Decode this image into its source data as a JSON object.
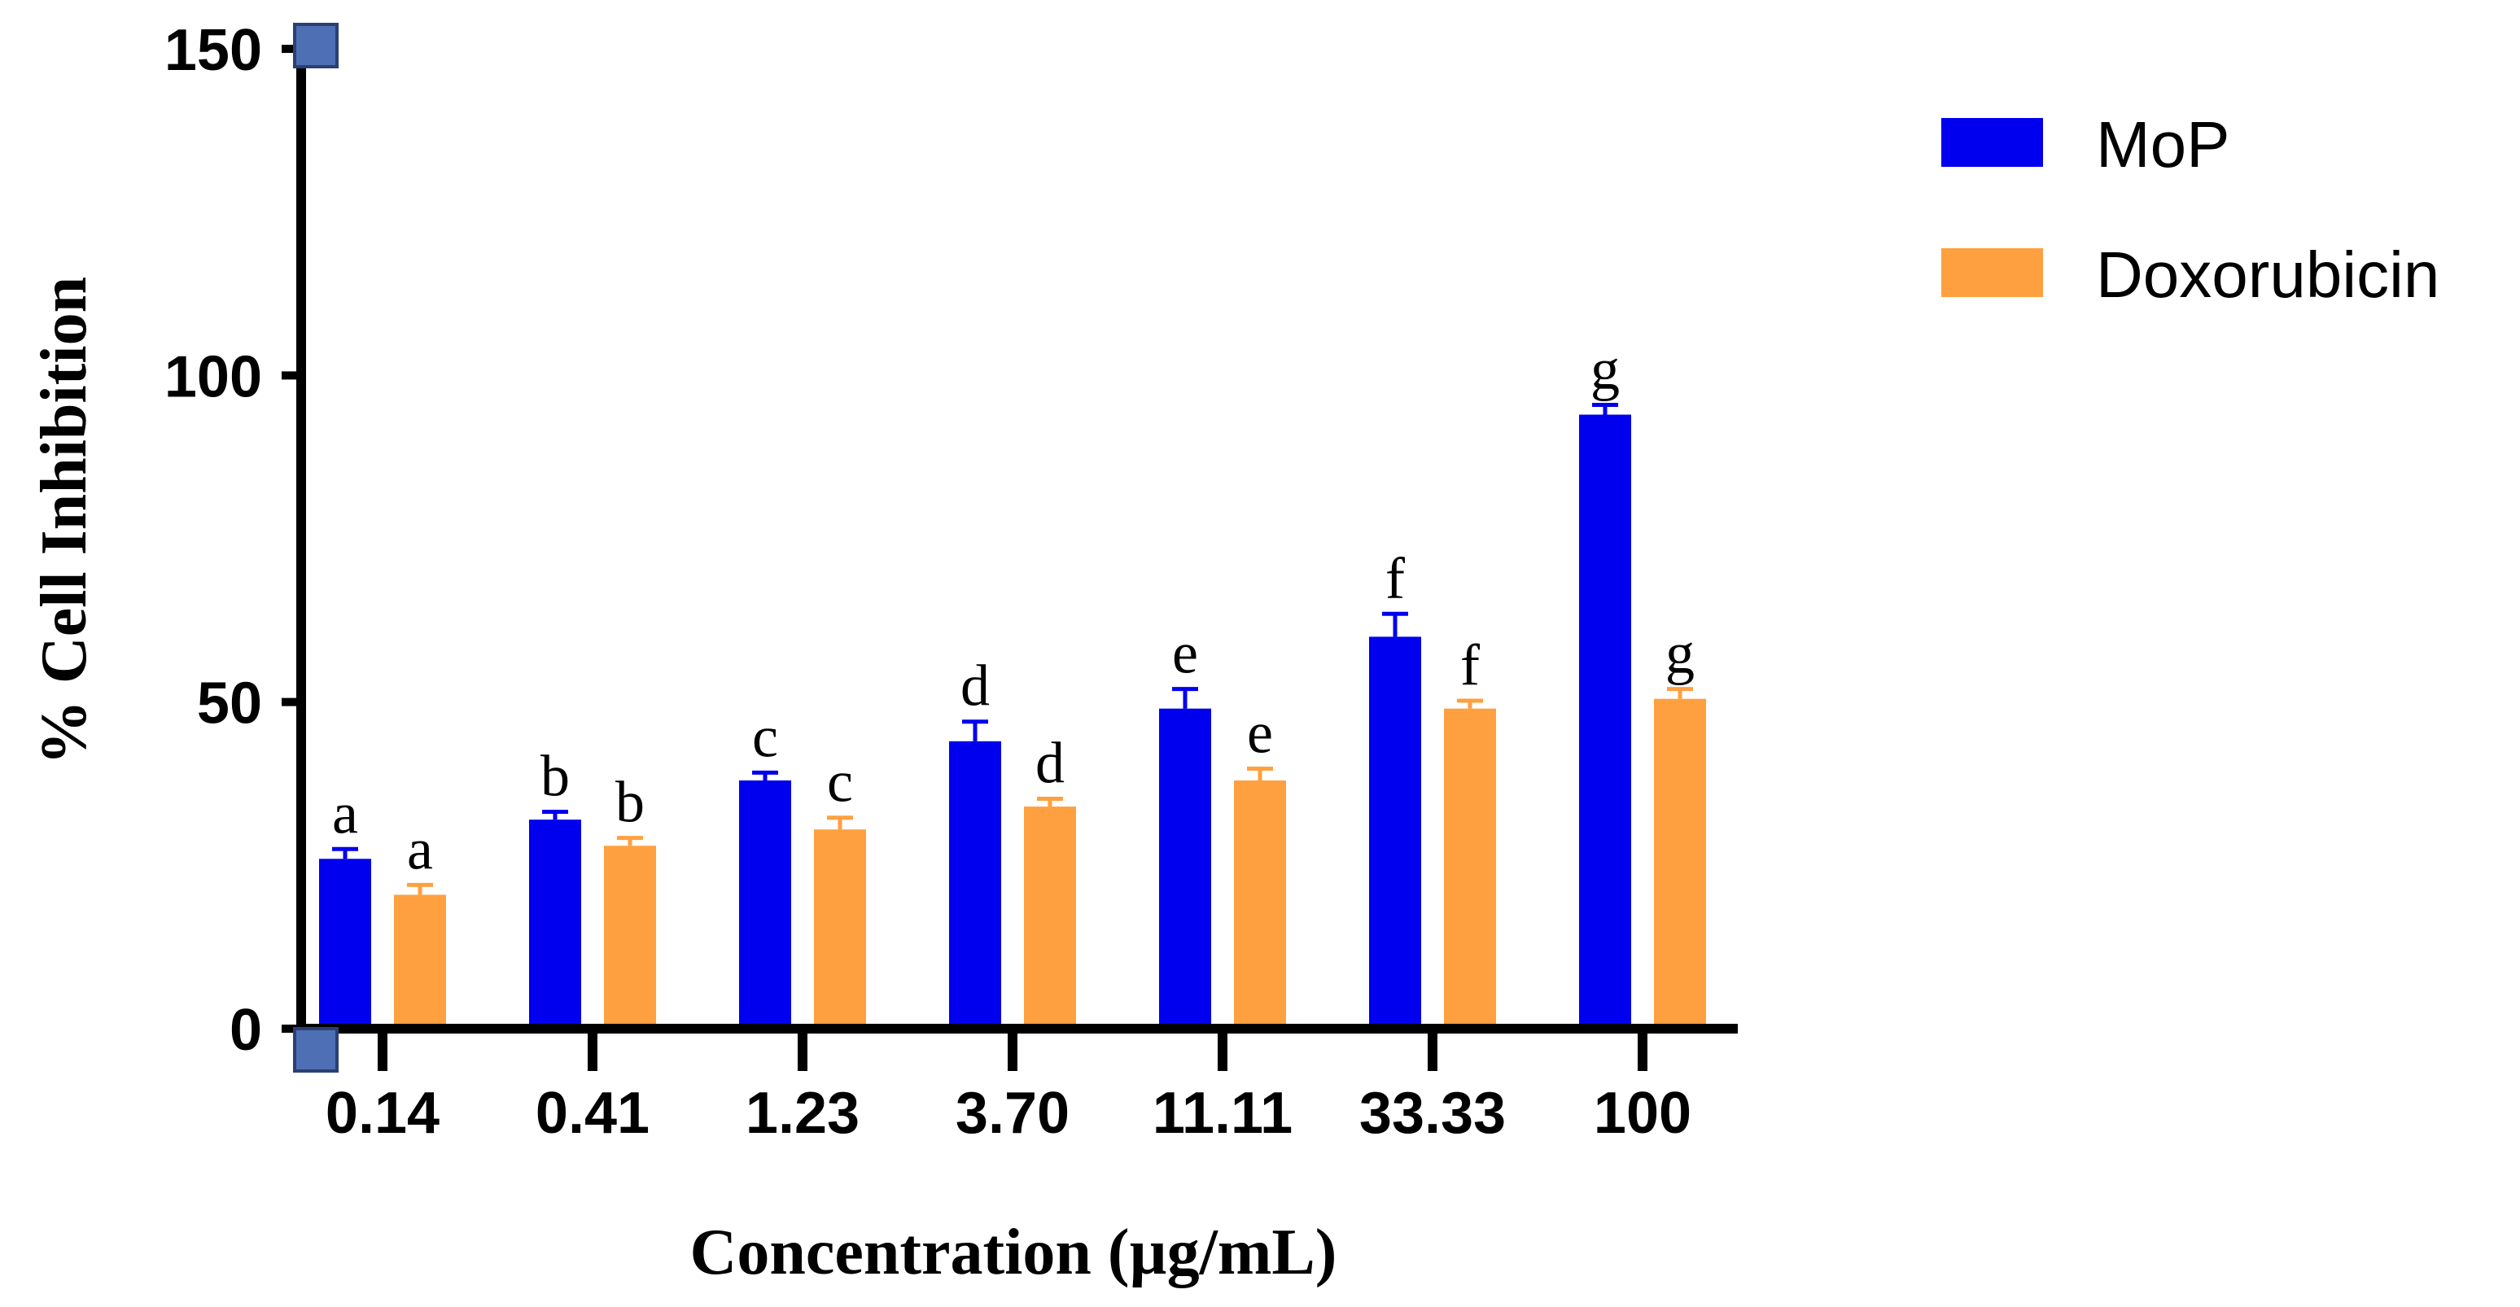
{
  "chart_data": {
    "type": "bar",
    "title": "",
    "xlabel": "Concentration (µg/mL)",
    "ylabel": "% Cell Inhibition",
    "ylim": [
      0,
      150
    ],
    "yticks": [
      "0",
      "50",
      "100",
      "150"
    ],
    "categories": [
      "0.14",
      "0.41",
      "1.23",
      "3.70",
      "11.11",
      "33.33",
      "100"
    ],
    "series": [
      {
        "name": "MoP",
        "color": "#0000ee",
        "values": [
          26,
          32,
          38,
          44,
          49,
          60,
          94
        ],
        "errors": [
          1.5,
          1.2,
          1.2,
          3,
          3,
          3.5,
          1.5
        ],
        "labels": [
          "a",
          "b",
          "c",
          "d",
          "e",
          "f",
          "g"
        ]
      },
      {
        "name": "Doxorubicin",
        "color": "#ffa040",
        "values": [
          20.5,
          28,
          30.5,
          34,
          38,
          49,
          50.5
        ],
        "errors": [
          1.5,
          1.2,
          1.8,
          1.2,
          1.8,
          1.2,
          1.5
        ],
        "labels": [
          "a",
          "b",
          "c",
          "d",
          "e",
          "f",
          "g"
        ]
      }
    ],
    "legend": "top-right"
  }
}
